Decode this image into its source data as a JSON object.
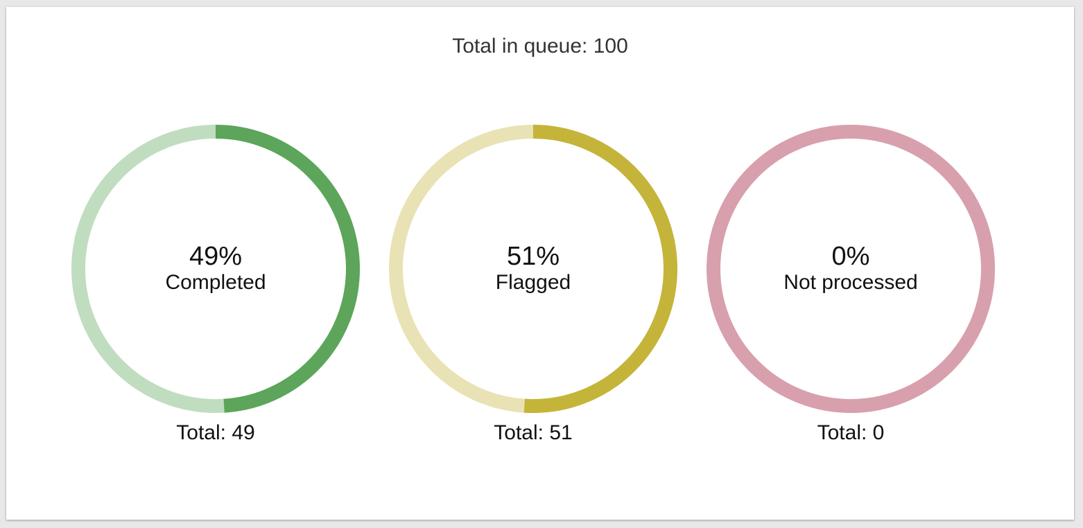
{
  "queue": {
    "total_label": "Total in queue: 100"
  },
  "gauges": [
    {
      "percent": "49%",
      "label": "Completed",
      "total": "Total: 49",
      "fraction": 0.49,
      "color": "#5ca55a",
      "track": "#c0ddc0"
    },
    {
      "percent": "51%",
      "label": "Flagged",
      "total": "Total: 51",
      "fraction": 0.51,
      "color": "#c5b43a",
      "track": "#e9e2b4"
    },
    {
      "percent": "0%",
      "label": "Not processed",
      "total": "Total: 0",
      "fraction": 0.0,
      "color": "#d7a0ac",
      "track": "#d7a0ac"
    }
  ]
}
